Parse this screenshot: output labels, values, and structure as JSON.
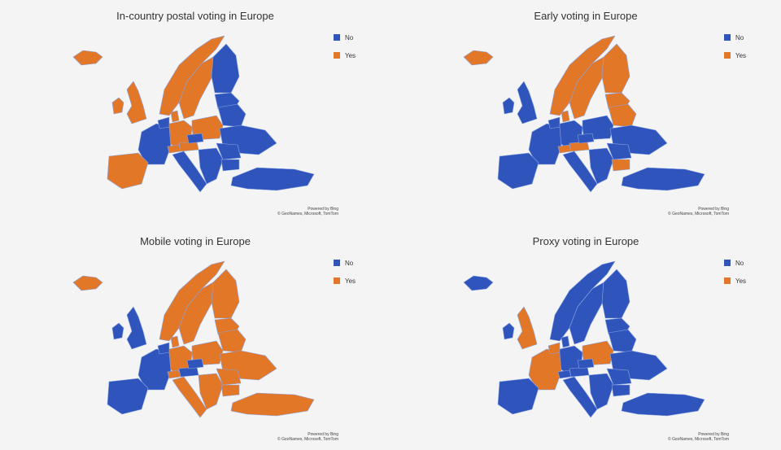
{
  "colors": {
    "no": "#2f55bd",
    "yes": "#e37728",
    "border": "#8aa3e0"
  },
  "legend": {
    "no_label": "No",
    "yes_label": "Yes"
  },
  "credit": {
    "line1": "Powered by Bing",
    "line2": "© GeoNames, Microsoft, TomTom"
  },
  "maps": [
    {
      "title": "In-country postal voting in Europe",
      "values": {
        "iceland": "yes",
        "ireland": "yes",
        "uk": "yes",
        "norway": "yes",
        "sweden": "yes",
        "finland": "no",
        "baltics": "no",
        "denmark": "yes",
        "germany": "yes",
        "poland": "yes",
        "belarus": "no",
        "ukraine": "no",
        "france": "no",
        "benelux": "no",
        "switzerland": "yes",
        "austria": "yes",
        "czechia": "no",
        "iberia": "yes",
        "italy": "no",
        "balkans": "no",
        "romania": "no",
        "bulgaria": "no",
        "turkey": "no"
      }
    },
    {
      "title": "Early voting in Europe",
      "values": {
        "iceland": "yes",
        "ireland": "no",
        "uk": "no",
        "norway": "yes",
        "sweden": "yes",
        "finland": "yes",
        "baltics": "yes",
        "denmark": "yes",
        "germany": "no",
        "poland": "no",
        "belarus": "yes",
        "ukraine": "no",
        "france": "no",
        "benelux": "no",
        "switzerland": "yes",
        "austria": "yes",
        "czechia": "no",
        "iberia": "no",
        "italy": "no",
        "balkans": "no",
        "romania": "no",
        "bulgaria": "yes",
        "turkey": "no"
      }
    },
    {
      "title": "Mobile voting in Europe",
      "values": {
        "iceland": "yes",
        "ireland": "no",
        "uk": "no",
        "norway": "yes",
        "sweden": "yes",
        "finland": "yes",
        "baltics": "yes",
        "denmark": "yes",
        "germany": "yes",
        "poland": "yes",
        "belarus": "yes",
        "ukraine": "yes",
        "france": "no",
        "benelux": "no",
        "switzerland": "yes",
        "austria": "no",
        "czechia": "no",
        "iberia": "no",
        "italy": "yes",
        "balkans": "yes",
        "romania": "yes",
        "bulgaria": "yes",
        "turkey": "yes"
      }
    },
    {
      "title": "Proxy voting in Europe",
      "values": {
        "iceland": "no",
        "ireland": "no",
        "uk": "yes",
        "norway": "no",
        "sweden": "no",
        "finland": "no",
        "baltics": "no",
        "denmark": "no",
        "germany": "no",
        "poland": "yes",
        "belarus": "no",
        "ukraine": "no",
        "france": "yes",
        "benelux": "yes",
        "switzerland": "no",
        "austria": "no",
        "czechia": "no",
        "iberia": "no",
        "italy": "no",
        "balkans": "no",
        "romania": "no",
        "bulgaria": "no",
        "turkey": "no"
      }
    }
  ]
}
